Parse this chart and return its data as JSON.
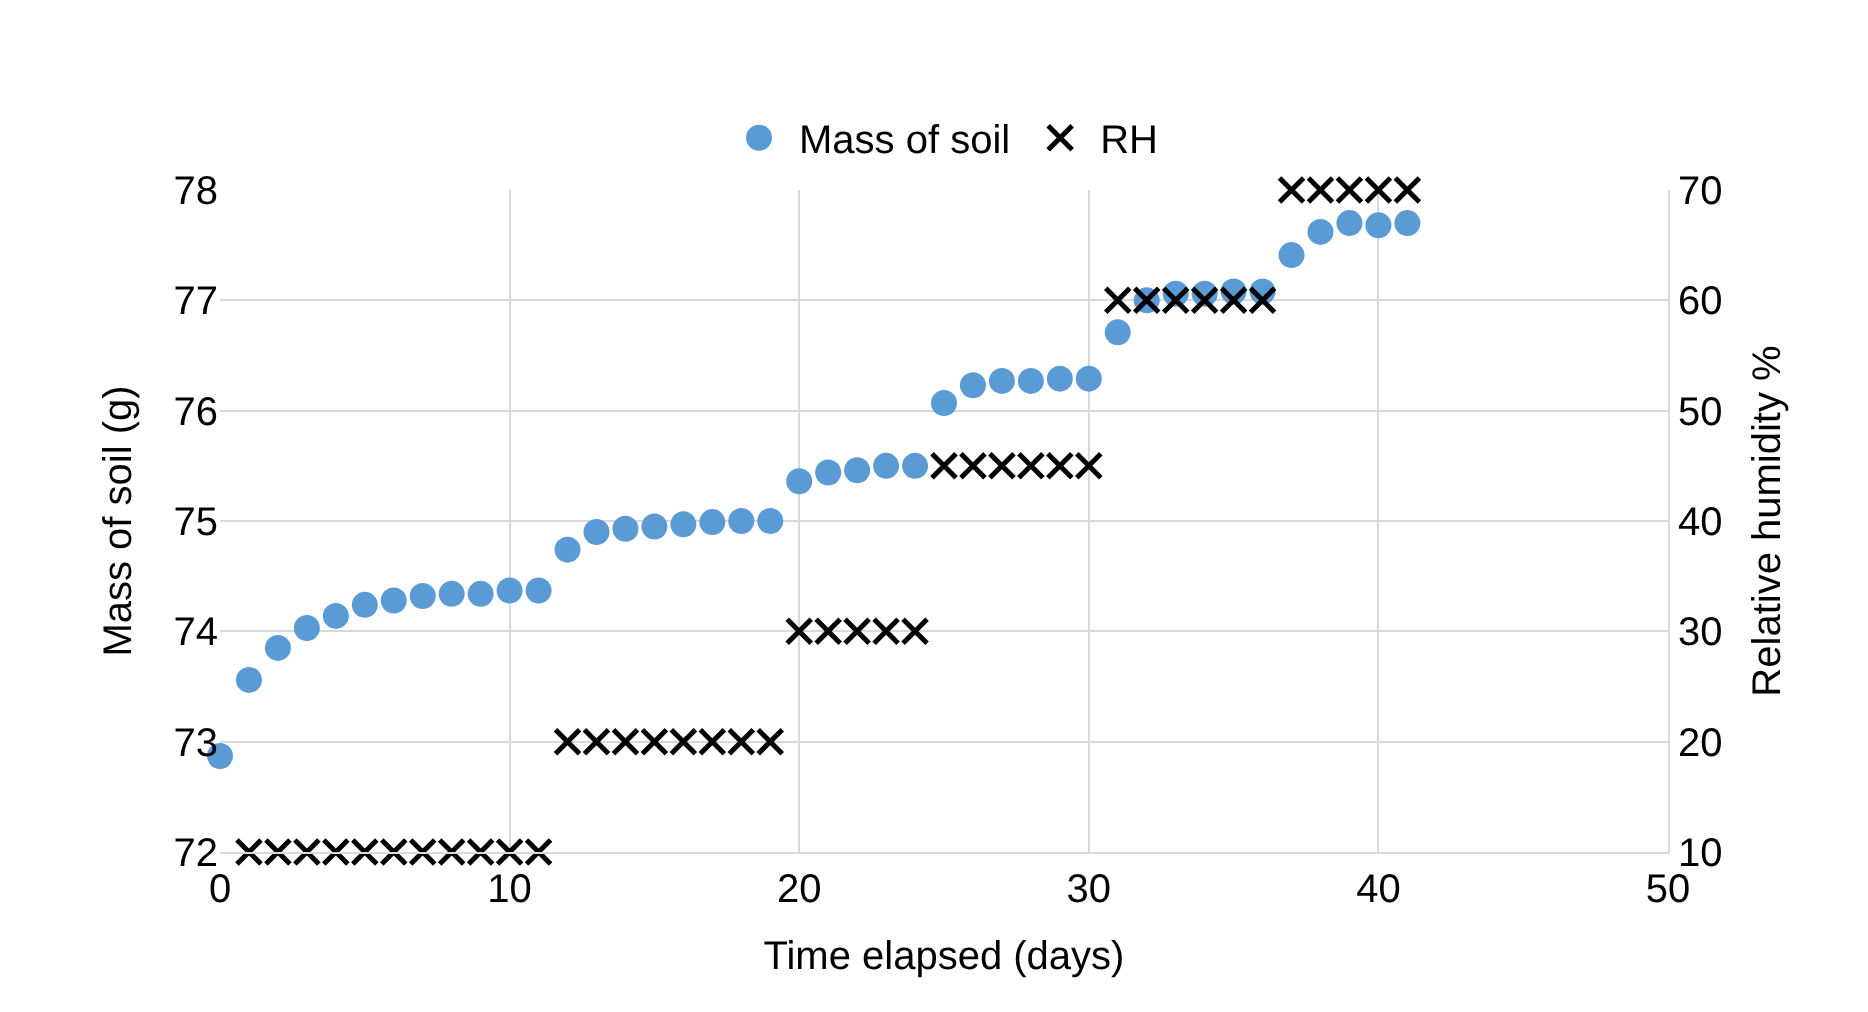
{
  "chart_data": {
    "type": "scatter",
    "xlabel": "Time elapsed (days)",
    "ylabel": "Mass of soil (g)",
    "y2label": "Relative humidity %",
    "xlim": [
      0,
      50
    ],
    "xticks": [
      0,
      10,
      20,
      30,
      40,
      50
    ],
    "ylim": [
      72,
      78
    ],
    "yticks": [
      72,
      73,
      74,
      75,
      76,
      77,
      78
    ],
    "y2lim": [
      10,
      70
    ],
    "y2ticks": [
      10,
      20,
      30,
      40,
      50,
      60,
      70
    ],
    "grid": true,
    "legend": "top",
    "series": [
      {
        "name": "Mass of soil",
        "color": "#5b9bd5",
        "marker": "circle",
        "x": [
          0,
          1,
          2,
          3,
          4,
          5,
          6,
          7,
          8,
          9,
          10,
          11,
          12,
          13,
          14,
          15,
          16,
          17,
          18,
          19,
          20,
          21,
          22,
          23,
          24,
          25,
          26,
          27,
          28,
          29,
          30,
          31,
          32,
          33,
          34,
          35,
          36,
          37,
          38,
          39,
          40,
          41
        ],
        "values": [
          72.87,
          73.56,
          73.85,
          74.03,
          74.14,
          74.24,
          74.28,
          74.32,
          74.34,
          74.34,
          74.37,
          74.37,
          74.74,
          74.9,
          74.93,
          74.95,
          74.97,
          74.99,
          75.0,
          75.0,
          75.36,
          75.44,
          75.46,
          75.5,
          75.5,
          76.07,
          76.23,
          76.27,
          76.27,
          76.29,
          76.29,
          76.71,
          77.0,
          77.06,
          77.06,
          77.08,
          77.08,
          77.41,
          77.62,
          77.7,
          77.68,
          77.7
        ]
      },
      {
        "name": "RH",
        "color": "#000000",
        "marker": "cross",
        "axis": "y2",
        "x": [
          1,
          2,
          3,
          4,
          5,
          6,
          7,
          8,
          9,
          10,
          11,
          12,
          13,
          14,
          15,
          16,
          17,
          18,
          19,
          20,
          21,
          22,
          23,
          24,
          25,
          26,
          27,
          28,
          29,
          30,
          31,
          32,
          33,
          34,
          35,
          36,
          37,
          38,
          39,
          40,
          41
        ],
        "values": [
          10,
          10,
          10,
          10,
          10,
          10,
          10,
          10,
          10,
          10,
          10,
          20,
          20,
          20,
          20,
          20,
          20,
          20,
          20,
          30,
          30,
          30,
          30,
          30,
          45,
          45,
          45,
          45,
          45,
          45,
          60,
          60,
          60,
          60,
          60,
          60,
          70,
          70,
          70,
          70,
          70
        ]
      }
    ]
  }
}
